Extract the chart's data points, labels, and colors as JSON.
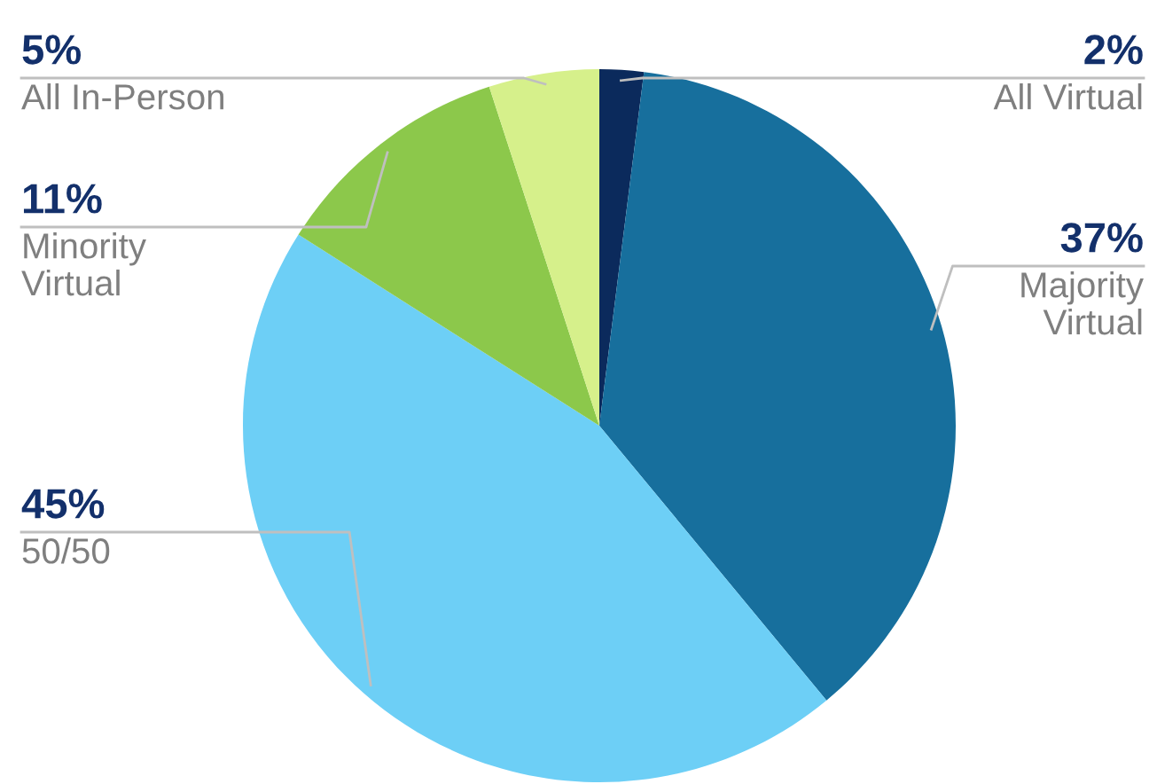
{
  "chart_data": {
    "type": "pie",
    "categories": [
      "All Virtual",
      "Majority\nVirtual",
      "50/50",
      "Minority\nVirtual",
      "All In-Person"
    ],
    "values": [
      2,
      37,
      45,
      11,
      5
    ],
    "value_labels": [
      "2%",
      "37%",
      "45%",
      "11%",
      "5%"
    ],
    "colors": [
      "#0b2a5c",
      "#176f9d",
      "#6dcff6",
      "#8cc84b",
      "#d6f08b"
    ]
  }
}
